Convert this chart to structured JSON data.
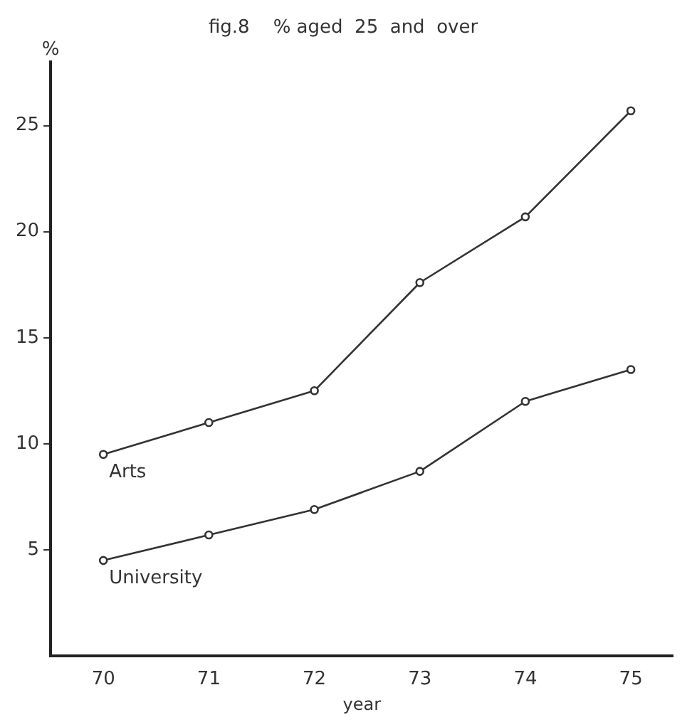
{
  "chart_data": {
    "type": "line",
    "title": "fig.8    % aged  25  and  over",
    "xlabel": "year",
    "ylabel": "%",
    "x": [
      70,
      71,
      72,
      73,
      74,
      75
    ],
    "series": [
      {
        "name": "Arts",
        "color": "#333333",
        "values": [
          9.5,
          11.0,
          12.5,
          17.6,
          20.7,
          25.7
        ]
      },
      {
        "name": "University",
        "color": "#333333",
        "values": [
          4.5,
          5.7,
          6.9,
          8.7,
          12.0,
          13.5
        ]
      }
    ],
    "xlim": [
      69.5,
      75.4
    ],
    "xticks": [
      70,
      71,
      72,
      73,
      74,
      75
    ],
    "ylim": [
      0,
      28
    ],
    "yticks": [
      5,
      10,
      15,
      20,
      25
    ],
    "grid": false,
    "legend": false,
    "marker": "circle",
    "line_style": "solid"
  }
}
